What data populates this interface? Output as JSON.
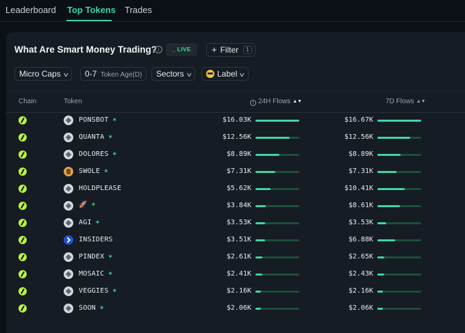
{
  "nav": {
    "tabs": [
      {
        "label": "Leaderboard"
      },
      {
        "label": "Top Tokens"
      },
      {
        "label": "Trades"
      }
    ]
  },
  "panel": {
    "title": "What Are Smart Money Trading?",
    "live_label": "_ LIVE",
    "filter_label": "Filter",
    "filter_count": "1"
  },
  "filters": {
    "caps": "Micro Caps",
    "age_value": "0-7",
    "age_label": "Token Age(D)",
    "sectors": "Sectors",
    "label": "Label"
  },
  "columns": {
    "chain": "Chain",
    "token": "Token",
    "flows24": "24H Flows",
    "flows7": "7D Flows"
  },
  "colors": {
    "accent": "#3fd4a4",
    "chain": "#b9f23f"
  },
  "rows": [
    {
      "name": "PONSBOT",
      "leaf": true,
      "icon": "token-icon",
      "f24": "$16.03K",
      "f24_level": 1.0,
      "f7": "$16.67K",
      "f7_level": 1.0
    },
    {
      "name": "QUANTA",
      "leaf": true,
      "icon": "token-icon",
      "f24": "$12.56K",
      "f24_level": 0.78,
      "f7": "$12.56K",
      "f7_level": 0.75
    },
    {
      "name": "DOLORES",
      "leaf": true,
      "icon": "token-icon",
      "f24": "$8.89K",
      "f24_level": 0.55,
      "f7": "$8.89K",
      "f7_level": 0.53
    },
    {
      "name": "SWOLE",
      "leaf": true,
      "icon": "swole-icon",
      "f24": "$7.31K",
      "f24_level": 0.46,
      "f7": "$7.31K",
      "f7_level": 0.44
    },
    {
      "name": "HOLDPLEASE",
      "leaf": false,
      "icon": "token-icon",
      "f24": "$5.62K",
      "f24_level": 0.35,
      "f7": "$10.41K",
      "f7_level": 0.62
    },
    {
      "name": "🚀",
      "leaf": true,
      "icon": "token-icon",
      "f24": "$3.84K",
      "f24_level": 0.24,
      "f7": "$8.61K",
      "f7_level": 0.52
    },
    {
      "name": "AGI",
      "leaf": true,
      "icon": "token-icon",
      "f24": "$3.53K",
      "f24_level": 0.22,
      "f7": "$3.53K",
      "f7_level": 0.21
    },
    {
      "name": "INSIDERS",
      "leaf": false,
      "icon": "insiders-icon",
      "f24": "$3.51K",
      "f24_level": 0.22,
      "f7": "$6.88K",
      "f7_level": 0.41
    },
    {
      "name": "PINDEX",
      "leaf": true,
      "icon": "token-icon",
      "f24": "$2.61K",
      "f24_level": 0.16,
      "f7": "$2.65K",
      "f7_level": 0.16
    },
    {
      "name": "MOSAIC",
      "leaf": true,
      "icon": "token-icon",
      "f24": "$2.41K",
      "f24_level": 0.15,
      "f7": "$2.43K",
      "f7_level": 0.15
    },
    {
      "name": "VEGGIES",
      "leaf": true,
      "icon": "token-icon",
      "f24": "$2.16K",
      "f24_level": 0.13,
      "f7": "$2.16K",
      "f7_level": 0.13
    },
    {
      "name": "SOON",
      "leaf": true,
      "icon": "token-icon",
      "f24": "$2.06K",
      "f24_level": 0.13,
      "f7": "$2.06K",
      "f7_level": 0.12
    }
  ]
}
